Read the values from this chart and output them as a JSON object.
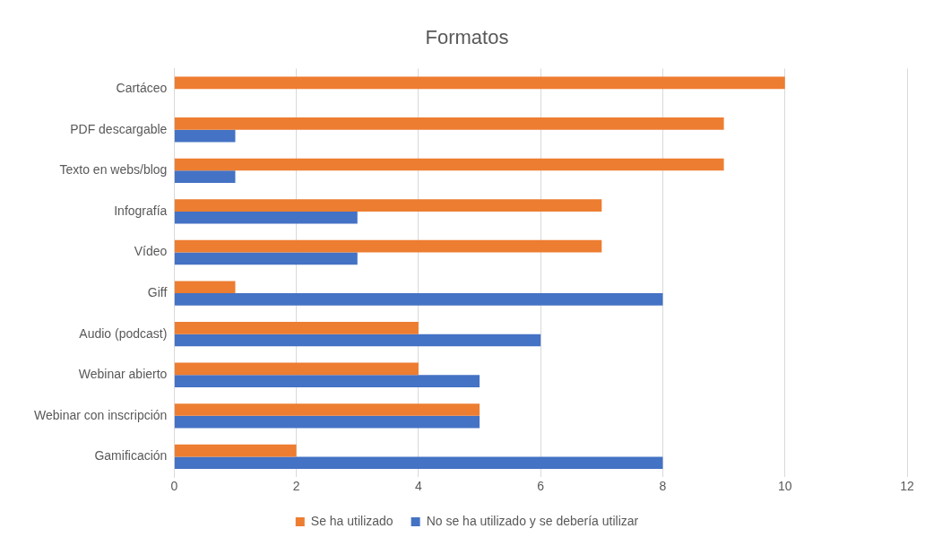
{
  "chart_data": {
    "type": "bar",
    "title": "Formatos",
    "orientation": "horizontal",
    "categories": [
      "Cartáceo",
      "PDF descargable",
      "Texto en webs/blog",
      "Infografía",
      "Vídeo",
      "Giff",
      "Audio (podcast)",
      "Webinar abierto",
      "Webinar con inscripción",
      "Gamificación"
    ],
    "series": [
      {
        "name": "Se ha utilizado",
        "color": "#ed7d31",
        "values": [
          10,
          9,
          9,
          7,
          7,
          1,
          4,
          4,
          5,
          2
        ]
      },
      {
        "name": "No se ha utilizado y se debería utilizar",
        "color": "#4472c4",
        "values": [
          null,
          1,
          1,
          3,
          3,
          8,
          6,
          5,
          5,
          8
        ]
      }
    ],
    "xlim": [
      0,
      12
    ],
    "xticks": [
      0,
      2,
      4,
      6,
      8,
      10,
      12
    ],
    "grid": "x",
    "legend": "bottom"
  }
}
